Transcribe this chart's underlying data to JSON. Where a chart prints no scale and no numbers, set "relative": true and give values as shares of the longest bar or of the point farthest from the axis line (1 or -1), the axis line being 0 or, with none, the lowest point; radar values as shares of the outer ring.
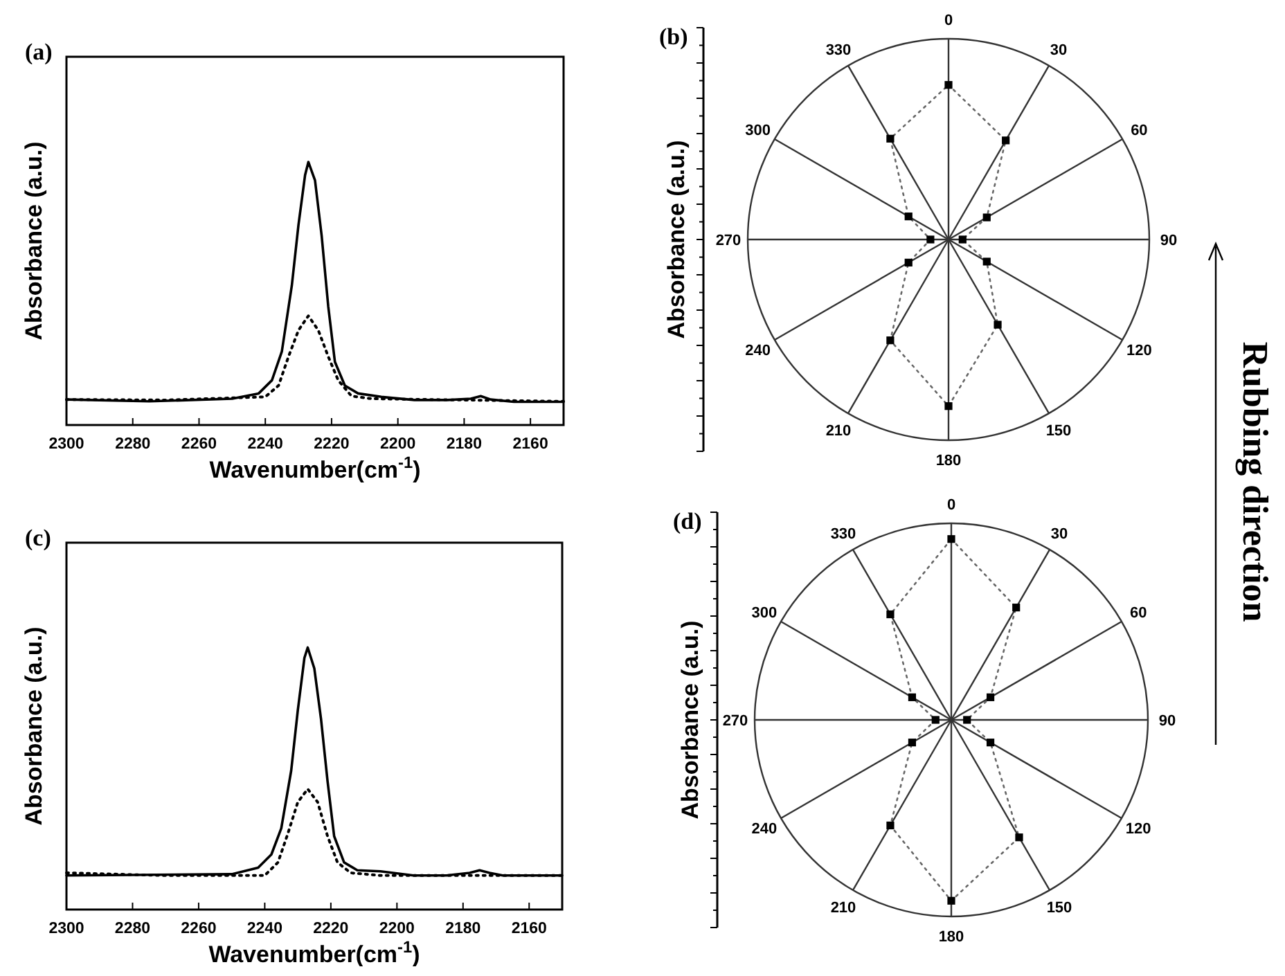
{
  "chart_data": [
    {
      "type": "line",
      "title": "(a)",
      "xlabel": "Wavenumber(cm$^{-1}$)",
      "ylabel": "Absorbance (a.u.)",
      "relative": true,
      "tick_labels": "x",
      "xlim": [
        2300,
        2150
      ],
      "xticks": [
        2300,
        2280,
        2260,
        2240,
        2220,
        2200,
        2180,
        2160
      ],
      "series": [
        {
          "color": "#000000",
          "line_style": "solid",
          "x": [
            2300,
            2275,
            2250,
            2242,
            2238,
            2235,
            2232,
            2230,
            2228,
            2227,
            2225,
            2223,
            2221,
            2219,
            2216,
            2212,
            2205,
            2195,
            2185,
            2178,
            2175,
            2172,
            2165,
            2150
          ],
          "values": [
            0.097,
            0.09,
            0.1,
            0.12,
            0.17,
            0.28,
            0.53,
            0.76,
            0.95,
            1,
            0.93,
            0.72,
            0.45,
            0.24,
            0.15,
            0.12,
            0.107,
            0.095,
            0.095,
            0.1,
            0.11,
            0.097,
            0.088,
            0.088
          ]
        },
        {
          "color": "#000000",
          "line_style": "dotted",
          "x": [
            2300,
            2270,
            2240,
            2236,
            2233,
            2230,
            2227,
            2224,
            2221,
            2218,
            2214,
            2208,
            2180,
            2150
          ],
          "values": [
            0.097,
            0.095,
            0.107,
            0.15,
            0.26,
            0.36,
            0.415,
            0.36,
            0.26,
            0.17,
            0.11,
            0.1,
            0.095,
            0.09
          ]
        }
      ]
    },
    {
      "type": "radar",
      "title": "(b)",
      "ylabel": "Absorbance (a.u.)",
      "relative": true,
      "grid": true,
      "marker": "square",
      "line_style": "dotted",
      "annotations": [
        "Rubbing direction"
      ],
      "categories": [
        "0",
        "30",
        "60",
        "90",
        "120",
        "150",
        "180",
        "210",
        "240",
        "270",
        "300",
        "330"
      ],
      "series": [
        {
          "color": "#000000",
          "values": [
            0.77,
            0.57,
            0.22,
            0.07,
            0.22,
            0.49,
            0.83,
            0.58,
            0.23,
            0.09,
            0.23,
            0.58
          ]
        }
      ]
    },
    {
      "type": "line",
      "title": "(c)",
      "xlabel": "Wavenumber(cm$^{-1}$)",
      "ylabel": "Absorbance (a.u.)",
      "relative": true,
      "tick_labels": "x",
      "xlim": [
        2300,
        2150
      ],
      "xticks": [
        2300,
        2280,
        2260,
        2240,
        2220,
        2200,
        2180,
        2160
      ],
      "series": [
        {
          "color": "#000000",
          "line_style": "solid",
          "x": [
            2300,
            2250,
            2242,
            2238,
            2235,
            2232,
            2230,
            2228,
            2227,
            2225,
            2223,
            2221,
            2219,
            2216,
            2212,
            2205,
            2195,
            2185,
            2178,
            2175,
            2172,
            2168,
            2150
          ],
          "values": [
            0.13,
            0.135,
            0.16,
            0.21,
            0.31,
            0.53,
            0.76,
            0.96,
            1,
            0.92,
            0.73,
            0.49,
            0.28,
            0.18,
            0.15,
            0.146,
            0.13,
            0.13,
            0.14,
            0.15,
            0.14,
            0.13,
            0.13
          ]
        },
        {
          "color": "#000000",
          "line_style": "dotted",
          "x": [
            2300,
            2270,
            2240,
            2236,
            2233,
            2230,
            2227,
            2224,
            2221,
            2218,
            2214,
            2205,
            2180,
            2150
          ],
          "values": [
            0.14,
            0.13,
            0.13,
            0.18,
            0.29,
            0.41,
            0.46,
            0.41,
            0.28,
            0.18,
            0.14,
            0.13,
            0.13,
            0.13
          ]
        }
      ]
    },
    {
      "type": "radar",
      "title": "(d)",
      "ylabel": "Absorbance (a.u.)",
      "relative": true,
      "grid": true,
      "marker": "square",
      "line_style": "dotted",
      "categories": [
        "0",
        "30",
        "60",
        "90",
        "120",
        "150",
        "180",
        "210",
        "240",
        "270",
        "300",
        "330"
      ],
      "series": [
        {
          "color": "#000000",
          "values": [
            0.92,
            0.66,
            0.23,
            0.08,
            0.23,
            0.69,
            0.92,
            0.62,
            0.23,
            0.08,
            0.23,
            0.62
          ]
        }
      ]
    }
  ]
}
